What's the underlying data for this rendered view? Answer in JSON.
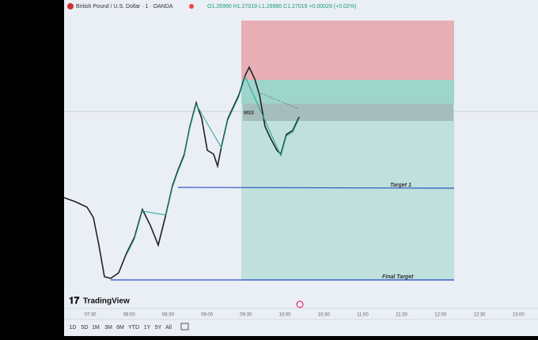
{
  "header": {
    "symbol": "British Pound / U.S. Dollar · 1 · OANDA",
    "ohlc": "O1.26990 H1.27019 L1.26980 C1.27019 +0.00029 (+0.02%)"
  },
  "annotations": {
    "mss": "MSS",
    "target1": "Target 1",
    "final_target": "Final Target"
  },
  "logo": "TradingView",
  "time_axis": [
    "07:30",
    "08:00",
    "08:30",
    "09:00",
    "09:30",
    "10:00",
    "10:30",
    "11:00",
    "11:30",
    "12:00",
    "12:30",
    "13:00"
  ],
  "ranges": [
    "1D",
    "5D",
    "1M",
    "3M",
    "6M",
    "YTD",
    "1Y",
    "5Y",
    "All"
  ]
}
